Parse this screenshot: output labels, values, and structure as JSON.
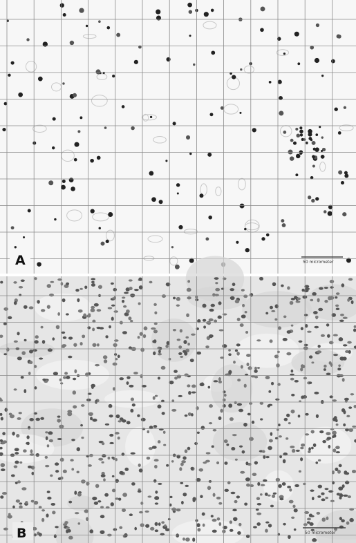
{
  "panels": [
    {
      "label": "A",
      "scale_bar": "50 micrometer"
    },
    {
      "label": "B",
      "scale_bar": "50 micrometer"
    }
  ]
}
